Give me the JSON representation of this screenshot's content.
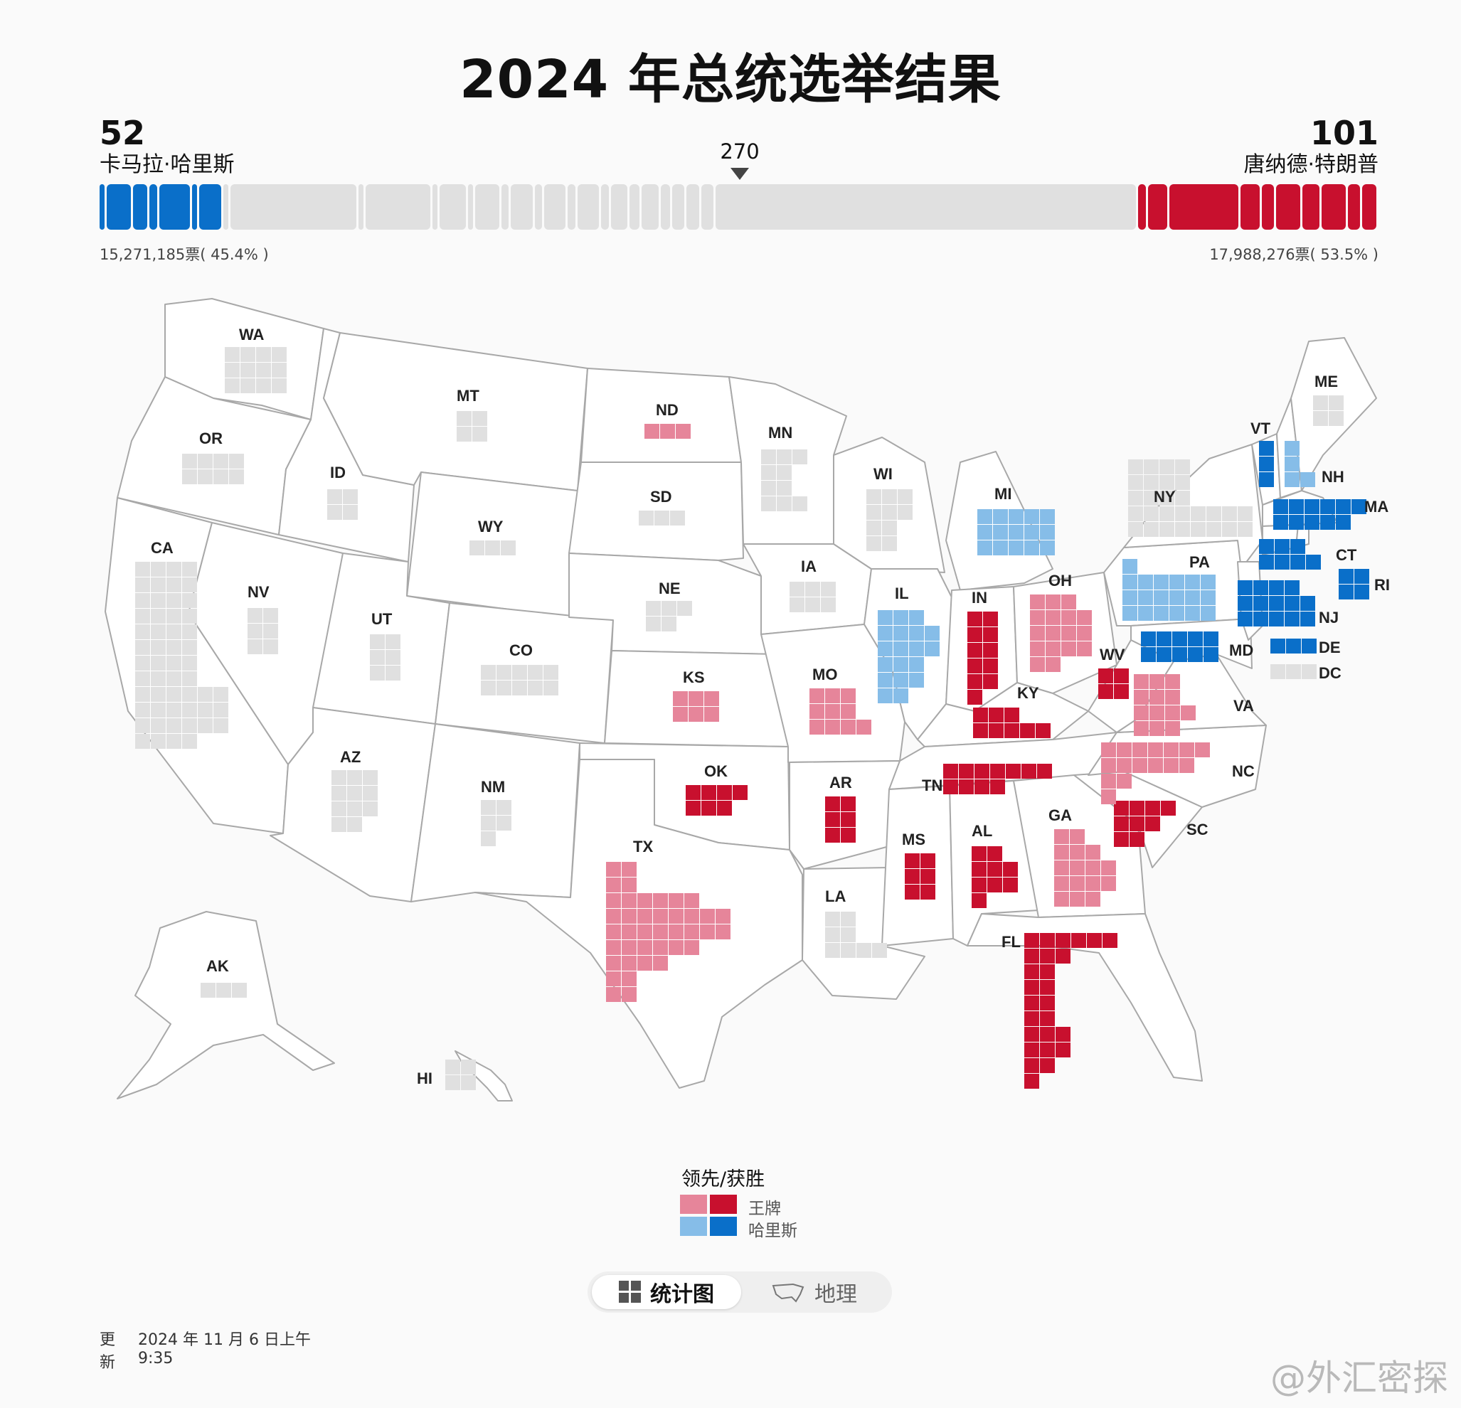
{
  "title": "2024 年总统选举结果",
  "harris": {
    "ev": "52",
    "name": "卡马拉·哈里斯",
    "votes": "15,271,185票( 45.4% )"
  },
  "trump": {
    "ev": "101",
    "name": "唐纳德·特朗普",
    "votes": "17,988,276票( 53.5% )"
  },
  "threshold": "270",
  "colors": {
    "trump_win": "#c8102e",
    "trump_lead": "#e6859a",
    "harris_win": "#0a6fc9",
    "harris_lead": "#86bde8",
    "pending": "#e0e0e0",
    "state_fill": "#ffffff",
    "state_border": "#a8a8a8"
  },
  "legend": {
    "title": "领先/获胜",
    "trump": "王牌",
    "harris": "哈里斯"
  },
  "toggle": {
    "chart": "统计图",
    "geo": "地理",
    "chart_icon": "grid-icon",
    "geo_icon": "us-outline-icon"
  },
  "updated": {
    "label_1": "更",
    "label_2": "新",
    "date": "2024 年 11 月 6 日上午",
    "time": "9:35"
  },
  "watermark": "@外汇密探",
  "states": [
    {
      "abbr": "WA",
      "ev": 12,
      "status": "pending"
    },
    {
      "abbr": "OR",
      "ev": 8,
      "status": "pending"
    },
    {
      "abbr": "CA",
      "ev": 54,
      "status": "pending"
    },
    {
      "abbr": "ID",
      "ev": 4,
      "status": "pending"
    },
    {
      "abbr": "NV",
      "ev": 6,
      "status": "pending"
    },
    {
      "abbr": "MT",
      "ev": 4,
      "status": "pending"
    },
    {
      "abbr": "WY",
      "ev": 3,
      "status": "pending"
    },
    {
      "abbr": "UT",
      "ev": 6,
      "status": "pending"
    },
    {
      "abbr": "CO",
      "ev": 10,
      "status": "pending"
    },
    {
      "abbr": "AZ",
      "ev": 11,
      "status": "pending"
    },
    {
      "abbr": "NM",
      "ev": 5,
      "status": "pending"
    },
    {
      "abbr": "ND",
      "ev": 3,
      "status": "trump_lead"
    },
    {
      "abbr": "SD",
      "ev": 3,
      "status": "pending"
    },
    {
      "abbr": "NE",
      "ev": 5,
      "status": "pending"
    },
    {
      "abbr": "KS",
      "ev": 6,
      "status": "trump_lead"
    },
    {
      "abbr": "OK",
      "ev": 7,
      "status": "trump_win"
    },
    {
      "abbr": "TX",
      "ev": 40,
      "status": "trump_lead"
    },
    {
      "abbr": "MN",
      "ev": 10,
      "status": "pending"
    },
    {
      "abbr": "IA",
      "ev": 6,
      "status": "pending"
    },
    {
      "abbr": "MO",
      "ev": 10,
      "status": "trump_lead"
    },
    {
      "abbr": "AR",
      "ev": 6,
      "status": "trump_win"
    },
    {
      "abbr": "LA",
      "ev": 8,
      "status": "pending"
    },
    {
      "abbr": "WI",
      "ev": 10,
      "status": "pending"
    },
    {
      "abbr": "IL",
      "ev": 19,
      "status": "harris_lead"
    },
    {
      "abbr": "MI",
      "ev": 15,
      "status": "harris_lead"
    },
    {
      "abbr": "IN",
      "ev": 11,
      "status": "trump_win"
    },
    {
      "abbr": "OH",
      "ev": 17,
      "status": "trump_lead"
    },
    {
      "abbr": "KY",
      "ev": 8,
      "status": "trump_win"
    },
    {
      "abbr": "TN",
      "ev": 11,
      "status": "trump_win"
    },
    {
      "abbr": "MS",
      "ev": 6,
      "status": "trump_win"
    },
    {
      "abbr": "AL",
      "ev": 9,
      "status": "trump_win"
    },
    {
      "abbr": "GA",
      "ev": 16,
      "status": "trump_lead"
    },
    {
      "abbr": "FL",
      "ev": 30,
      "status": "trump_win"
    },
    {
      "abbr": "SC",
      "ev": 9,
      "status": "trump_win"
    },
    {
      "abbr": "NC",
      "ev": 16,
      "status": "trump_lead"
    },
    {
      "abbr": "VA",
      "ev": 13,
      "status": "trump_lead"
    },
    {
      "abbr": "WV",
      "ev": 4,
      "status": "trump_win"
    },
    {
      "abbr": "PA",
      "ev": 19,
      "status": "harris_lead"
    },
    {
      "abbr": "NY",
      "ev": 28,
      "status": "pending"
    },
    {
      "abbr": "VT",
      "ev": 3,
      "status": "harris_win"
    },
    {
      "abbr": "NH",
      "ev": 4,
      "status": "harris_lead"
    },
    {
      "abbr": "ME",
      "ev": 4,
      "status": "pending"
    },
    {
      "abbr": "MA",
      "ev": 11,
      "status": "harris_win"
    },
    {
      "abbr": "CT",
      "ev": 7,
      "status": "harris_win"
    },
    {
      "abbr": "RI",
      "ev": 4,
      "status": "harris_win"
    },
    {
      "abbr": "NJ",
      "ev": 14,
      "status": "harris_win"
    },
    {
      "abbr": "DE",
      "ev": 3,
      "status": "harris_win"
    },
    {
      "abbr": "MD",
      "ev": 10,
      "status": "harris_win"
    },
    {
      "abbr": "DC",
      "ev": 3,
      "status": "pending"
    },
    {
      "abbr": "AK",
      "ev": 3,
      "status": "pending"
    },
    {
      "abbr": "HI",
      "ev": 4,
      "status": "pending"
    }
  ]
}
